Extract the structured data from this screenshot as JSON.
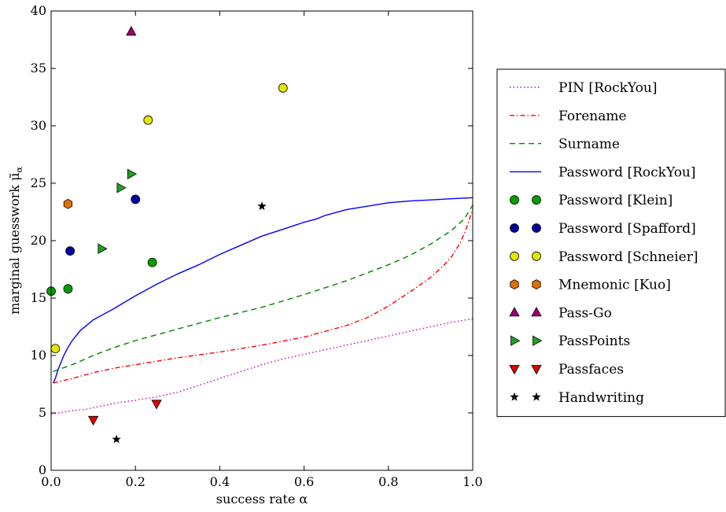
{
  "chart_data": {
    "type": "scatter",
    "xlabel": "success rate α",
    "ylabel_prefix": "marginal guesswork μ̃",
    "ylabel_subscript": "α",
    "xlim": [
      0.0,
      1.0
    ],
    "ylim": [
      0,
      40
    ],
    "x_ticks": [
      0.0,
      0.2,
      0.4,
      0.6,
      0.8,
      1.0
    ],
    "x_tick_labels": [
      "0.0",
      "0.2",
      "0.4",
      "0.6",
      "0.8",
      "1.0"
    ],
    "y_ticks": [
      0,
      5,
      10,
      15,
      20,
      25,
      30,
      35,
      40
    ],
    "y_tick_labels": [
      "0",
      "5",
      "10",
      "15",
      "20",
      "25",
      "30",
      "35",
      "40"
    ],
    "grid": false,
    "legend_position": "outside-right",
    "lines": [
      {
        "name": "PIN [RockYou]",
        "color": "#bf00bf",
        "style": "dotted",
        "x": [
          0.0,
          0.02,
          0.05,
          0.08,
          0.12,
          0.16,
          0.2,
          0.25,
          0.3,
          0.35,
          0.4,
          0.45,
          0.5,
          0.55,
          0.6,
          0.65,
          0.7,
          0.75,
          0.8,
          0.85,
          0.9,
          0.95,
          1.0
        ],
        "y": [
          4.9,
          5.0,
          5.2,
          5.3,
          5.6,
          5.9,
          6.1,
          6.4,
          6.8,
          7.4,
          8.0,
          8.6,
          9.2,
          9.7,
          10.1,
          10.5,
          10.9,
          11.3,
          11.7,
          12.1,
          12.5,
          12.9,
          13.2
        ]
      },
      {
        "name": "Forename",
        "color": "#ff0000",
        "style": "dashdot",
        "x": [
          0.005,
          0.05,
          0.1,
          0.15,
          0.2,
          0.3,
          0.4,
          0.5,
          0.6,
          0.7,
          0.75,
          0.8,
          0.85,
          0.9,
          0.93,
          0.95,
          0.97,
          0.98,
          0.99,
          1.0
        ],
        "y": [
          7.6,
          8.0,
          8.5,
          8.9,
          9.2,
          9.8,
          10.3,
          10.9,
          11.6,
          12.6,
          13.3,
          14.3,
          15.5,
          16.8,
          17.8,
          18.6,
          19.8,
          20.6,
          21.6,
          22.8
        ]
      },
      {
        "name": "Surname",
        "color": "#008000",
        "style": "dashed",
        "x": [
          0.005,
          0.05,
          0.1,
          0.15,
          0.2,
          0.3,
          0.4,
          0.5,
          0.6,
          0.7,
          0.8,
          0.85,
          0.9,
          0.95,
          0.98,
          1.0
        ],
        "y": [
          8.6,
          9.2,
          10.0,
          10.7,
          11.3,
          12.3,
          13.3,
          14.2,
          15.3,
          16.5,
          17.9,
          18.7,
          19.7,
          20.9,
          21.9,
          23.1
        ]
      },
      {
        "name": "Password [RockYou]",
        "color": "#0000ff",
        "style": "solid",
        "x": [
          0.005,
          0.01,
          0.015,
          0.02,
          0.03,
          0.04,
          0.05,
          0.07,
          0.1,
          0.15,
          0.2,
          0.25,
          0.3,
          0.35,
          0.4,
          0.45,
          0.5,
          0.55,
          0.6,
          0.63,
          0.65,
          0.7,
          0.75,
          0.8,
          0.85,
          0.9,
          0.95,
          1.0
        ],
        "y": [
          7.6,
          8.0,
          8.6,
          9.1,
          10.0,
          10.7,
          11.3,
          12.2,
          13.1,
          14.1,
          15.2,
          16.2,
          17.1,
          17.9,
          18.8,
          19.6,
          20.4,
          21.0,
          21.6,
          21.9,
          22.2,
          22.7,
          23.0,
          23.3,
          23.45,
          23.55,
          23.65,
          23.75
        ]
      }
    ],
    "points": [
      {
        "name": "Password [Klein]",
        "marker": "circle",
        "color": "#00a000",
        "x": [
          0.0,
          0.04,
          0.24
        ],
        "y": [
          15.6,
          15.8,
          18.1
        ]
      },
      {
        "name": "Password [Spafford]",
        "marker": "circle",
        "color": "#0000a0",
        "x": [
          0.045,
          0.2
        ],
        "y": [
          19.1,
          23.6
        ]
      },
      {
        "name": "Password [Schneier]",
        "marker": "circle",
        "color": "#e6e600",
        "x": [
          0.01,
          0.23,
          0.55
        ],
        "y": [
          10.6,
          30.5,
          33.3
        ]
      },
      {
        "name": "Mnemonic [Kuo]",
        "marker": "hexagon",
        "color": "#e07000",
        "x": [
          0.04
        ],
        "y": [
          23.2
        ]
      },
      {
        "name": "Pass-Go",
        "marker": "triangle-up",
        "color": "#a0006a",
        "x": [
          0.19
        ],
        "y": [
          38.2
        ]
      },
      {
        "name": "PassPoints",
        "marker": "triangle-right",
        "color": "#20a020",
        "x": [
          0.12,
          0.165,
          0.19
        ],
        "y": [
          19.3,
          24.6,
          25.8
        ]
      },
      {
        "name": "Passfaces",
        "marker": "triangle-down",
        "color": "#e00000",
        "x": [
          0.1,
          0.25
        ],
        "y": [
          4.4,
          5.8
        ]
      },
      {
        "name": "Handwriting",
        "marker": "star",
        "color": "#000000",
        "x": [
          0.155,
          0.5
        ],
        "y": [
          2.7,
          23.0
        ]
      }
    ]
  }
}
